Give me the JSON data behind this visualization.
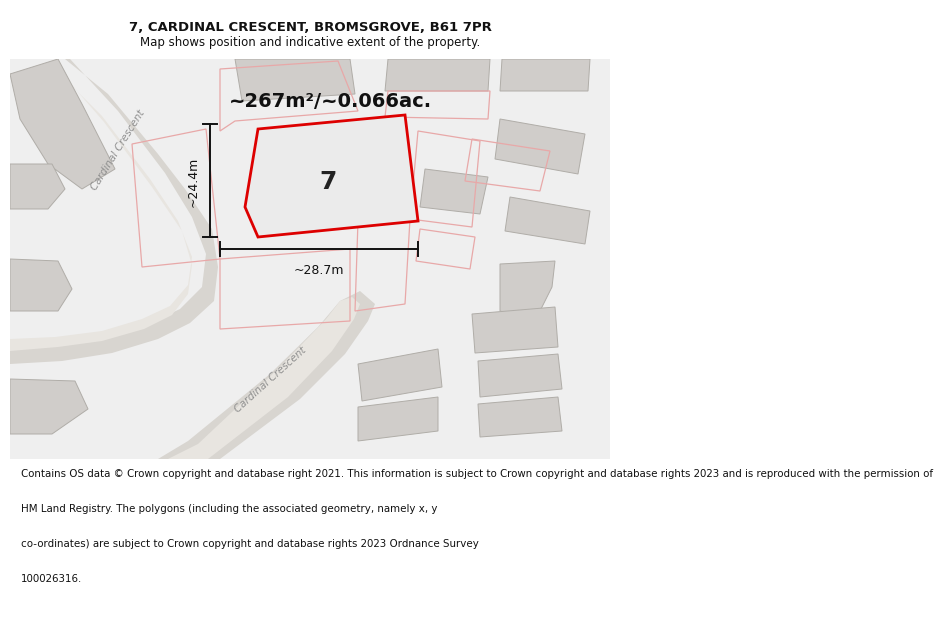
{
  "title_line1": "7, CARDINAL CRESCENT, BROMSGROVE, B61 7PR",
  "title_line2": "Map shows position and indicative extent of the property.",
  "area_text": "~267m²/~0.066ac.",
  "plot_number": "7",
  "dim_width": "~28.7m",
  "dim_height": "~24.4m",
  "footer_lines": [
    "Contains OS data © Crown copyright and database right 2021. This information is subject to Crown copyright and database rights 2023 and is reproduced with the permission of",
    "HM Land Registry. The polygons (including the associated geometry, namely x, y",
    "co-ordinates) are subject to Crown copyright and database rights 2023 Ordnance Survey",
    "100026316."
  ],
  "map_bg": "#efefef",
  "road_color": "#d8d5d0",
  "road_light": "#e8e5e0",
  "building_fill": "#d0cdca",
  "building_edge": "#b0ada8",
  "neighbor_fill": "#e2dfdb",
  "neighbor_edge": "#c8c5c0",
  "plot_fill": "#ebebeb",
  "plot_edge": "#dd0000",
  "adj_plot_edge": "#e8a8a8",
  "dim_color": "#111111",
  "road_text_color": "#909090",
  "label_color": "#111111",
  "footer_bg": "#ffffff",
  "title_color": "#111111"
}
